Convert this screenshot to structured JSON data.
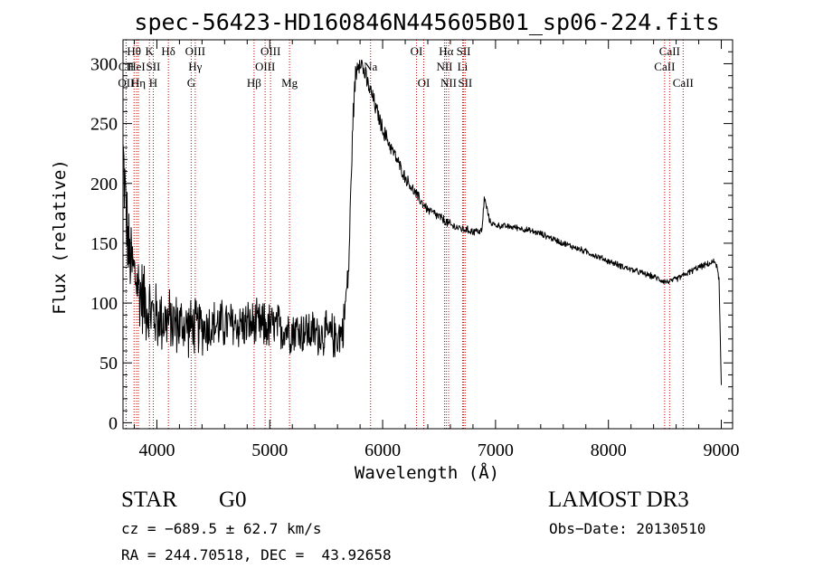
{
  "chart_data": {
    "type": "line",
    "title": "spec-56423-HD160846N445605B01_sp06-224.fits",
    "xlabel": "Wavelength (Å)",
    "ylabel": "Flux (relative)",
    "xlim": [
      3700,
      9100
    ],
    "ylim": [
      -5,
      320
    ],
    "xticks": [
      4000,
      5000,
      6000,
      7000,
      8000,
      9000
    ],
    "yticks": [
      0,
      50,
      100,
      150,
      200,
      250,
      300
    ],
    "spectrum_anchor_points": {
      "x": [
        3700,
        3720,
        3750,
        3800,
        3850,
        3900,
        3950,
        4000,
        4100,
        4200,
        4300,
        4400,
        4600,
        4800,
        5000,
        5200,
        5400,
        5600,
        5650,
        5700,
        5720,
        5740,
        5760,
        5780,
        5800,
        5830,
        5860,
        5900,
        6000,
        6100,
        6200,
        6300,
        6400,
        6500,
        6560,
        6600,
        6700,
        6800,
        6880,
        6900,
        6950,
        7000,
        7200,
        7400,
        7600,
        7800,
        8000,
        8200,
        8400,
        8500,
        8550,
        8600,
        8700,
        8800,
        8900,
        8950,
        8980,
        9000
      ],
      "y": [
        225,
        190,
        140,
        125,
        110,
        100,
        92,
        88,
        85,
        82,
        80,
        80,
        82,
        82,
        80,
        78,
        75,
        72,
        78,
        130,
        200,
        260,
        290,
        300,
        305,
        295,
        285,
        275,
        245,
        225,
        205,
        190,
        178,
        172,
        168,
        165,
        162,
        160,
        160,
        188,
        168,
        165,
        163,
        158,
        150,
        143,
        135,
        128,
        122,
        118,
        118,
        120,
        125,
        130,
        133,
        135,
        120,
        30
      ],
      "noise_amplitude": [
        40,
        40,
        45,
        40,
        40,
        38,
        36,
        34,
        32,
        30,
        28,
        27,
        25,
        24,
        24,
        23,
        22,
        22,
        20,
        15,
        12,
        12,
        12,
        12,
        12,
        10,
        10,
        9,
        8,
        7,
        6,
        6,
        5,
        5,
        5,
        5,
        4,
        4,
        4,
        4,
        3,
        3,
        3,
        3,
        3,
        3,
        3,
        3,
        3,
        3,
        3,
        3,
        3,
        3,
        3,
        3,
        3,
        3
      ]
    },
    "spectral_lines": [
      {
        "label": "Hθ",
        "x": 3798,
        "row": 0
      },
      {
        "label": "CII",
        "x": 3728,
        "row": 1
      },
      {
        "label": "OII",
        "x": 3727,
        "row": 2
      },
      {
        "label": "HeI",
        "x": 3820,
        "row": 1
      },
      {
        "label": "Hη",
        "x": 3836,
        "row": 2
      },
      {
        "label": "K",
        "x": 3934,
        "row": 0
      },
      {
        "label": "SII",
        "x": 3968,
        "row": 1
      },
      {
        "label": "H",
        "x": 3968,
        "row": 2
      },
      {
        "label": "Hδ",
        "x": 4102,
        "row": 0
      },
      {
        "label": "OIII",
        "x": 4340,
        "row": 0
      },
      {
        "label": "Hγ",
        "x": 4340,
        "row": 1
      },
      {
        "label": "G",
        "x": 4304,
        "row": 2
      },
      {
        "label": "Hβ",
        "x": 4861,
        "row": 2
      },
      {
        "label": "OIII",
        "x": 5007,
        "row": 0
      },
      {
        "label": "OIII",
        "x": 4959,
        "row": 1
      },
      {
        "label": "Mg",
        "x": 5175,
        "row": 2
      },
      {
        "label": "Na",
        "x": 5893,
        "row": 1
      },
      {
        "label": "OI",
        "x": 6300,
        "row": 0
      },
      {
        "label": "OI",
        "x": 6364,
        "row": 2
      },
      {
        "label": "Hα",
        "x": 6563,
        "row": 0
      },
      {
        "label": "NII",
        "x": 6548,
        "row": 1
      },
      {
        "label": "NII",
        "x": 6584,
        "row": 2
      },
      {
        "label": "SII",
        "x": 6717,
        "row": 0
      },
      {
        "label": "Li",
        "x": 6708,
        "row": 1
      },
      {
        "label": "SII",
        "x": 6731,
        "row": 2
      },
      {
        "label": "CaII",
        "x": 8542,
        "row": 0
      },
      {
        "label": "CaII",
        "x": 8498,
        "row": 1
      },
      {
        "label": "CaII",
        "x": 8662,
        "row": 2
      }
    ]
  },
  "info": {
    "object_type": "STAR",
    "subclass": "G0",
    "survey": "LAMOST DR3",
    "cz": "cz = −689.5 ± 62.7 km/s",
    "obs_date": "Obs−Date: 20130510",
    "radec": "RA = 244.70518, DEC =  43.92658"
  },
  "colors": {
    "spectrum": "#000000",
    "line_markers": "#cc0000"
  }
}
